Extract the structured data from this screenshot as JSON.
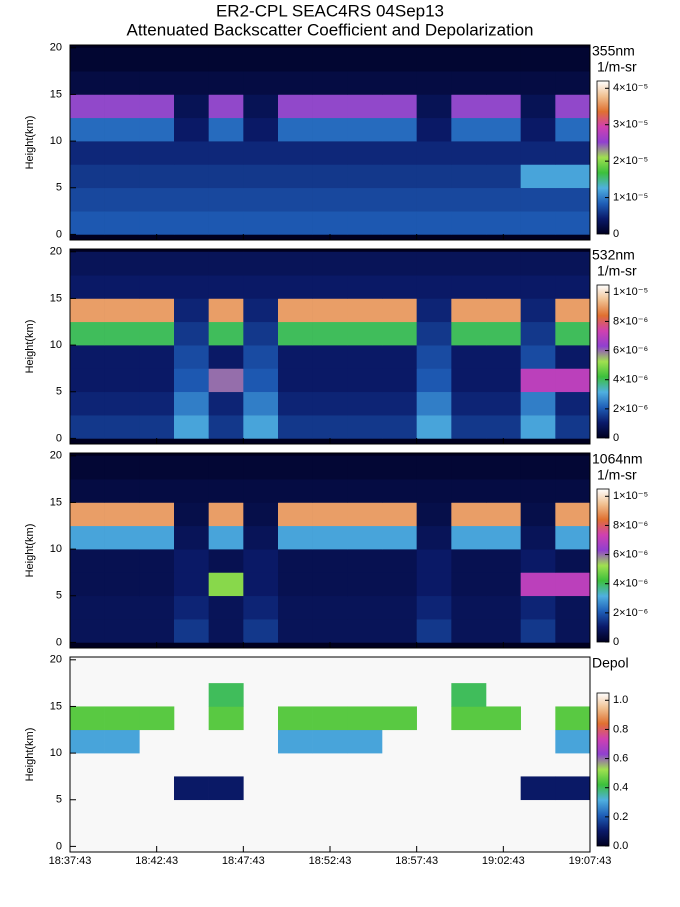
{
  "chart_data": [
    {
      "type": "heatmap",
      "title": "ER2-CPL SEAC4RS 04Sep13",
      "subtitle": "Attenuated Backscatter Coefficient and Depolarization",
      "label": "355nm",
      "units": "1/m-sr",
      "ylabel": "Height(km)",
      "xlim": [
        0,
        30
      ],
      "xticks": [
        0,
        5,
        10,
        15,
        20,
        25,
        30
      ],
      "ylim": [
        -0.6,
        20.3
      ],
      "yticks": [
        0,
        5,
        10,
        15,
        20
      ],
      "xbins": [
        0,
        2,
        4,
        6,
        8,
        10,
        12,
        14,
        16,
        18,
        20,
        22,
        24,
        26,
        28,
        30
      ],
      "ybins": [
        0,
        2.5,
        5,
        7.5,
        10,
        12.5,
        15,
        17.5,
        20
      ],
      "clim": [
        0,
        4.2e-05
      ],
      "cticks": [
        0,
        {
          "value": 1e-05,
          "label": "1×10⁻⁵"
        },
        {
          "value": 2e-05,
          "label": "2×10⁻⁵"
        },
        {
          "value": 3e-05,
          "label": "3×10⁻⁵"
        },
        {
          "value": 4e-05,
          "label": "4×10⁻⁵"
        }
      ],
      "colormap": [
        "#000020",
        "#0a1a6a",
        "#1f5fb8",
        "#4fb0e0",
        "#3cc03c",
        "#a0e050",
        "#9040d0",
        "#d040b0",
        "#e07030",
        "#f0c090",
        "#ffffff"
      ],
      "z": [
        [
          8e-06,
          8e-06,
          8e-06,
          8e-06,
          8e-06,
          8e-06,
          8e-06,
          8e-06,
          8e-06,
          8e-06,
          8e-06,
          8e-06,
          8e-06,
          8e-06,
          8e-06
        ],
        [
          7e-06,
          7e-06,
          7e-06,
          7e-06,
          7e-06,
          7e-06,
          7e-06,
          7e-06,
          7e-06,
          7e-06,
          7e-06,
          7e-06,
          7e-06,
          7e-06,
          7e-06
        ],
        [
          6e-06,
          6e-06,
          6e-06,
          6e-06,
          6e-06,
          6e-06,
          6e-06,
          6e-06,
          6e-06,
          6e-06,
          6e-06,
          6e-06,
          6e-06,
          1.2e-05,
          1.2e-05
        ],
        [
          5e-06,
          5e-06,
          5e-06,
          5e-06,
          5e-06,
          5e-06,
          5e-06,
          5e-06,
          5e-06,
          5e-06,
          5e-06,
          5e-06,
          5e-06,
          5e-06,
          5e-06
        ],
        [
          9e-06,
          9e-06,
          9e-06,
          4e-06,
          9e-06,
          4e-06,
          9e-06,
          9e-06,
          9e-06,
          9e-06,
          4e-06,
          9e-06,
          9e-06,
          4e-06,
          9e-06
        ],
        [
          2.5e-05,
          2.5e-05,
          2.5e-05,
          3e-06,
          2.5e-05,
          3e-06,
          2.5e-05,
          2.5e-05,
          2.5e-05,
          2.5e-05,
          3e-06,
          2.5e-05,
          2.5e-05,
          3e-06,
          2.5e-05
        ],
        [
          2e-06,
          2e-06,
          2e-06,
          2e-06,
          2e-06,
          2e-06,
          2e-06,
          2e-06,
          2e-06,
          2e-06,
          2e-06,
          2e-06,
          2e-06,
          2e-06,
          2e-06
        ],
        [
          1e-06,
          1e-06,
          1e-06,
          1e-06,
          1e-06,
          1e-06,
          1e-06,
          1e-06,
          1e-06,
          1e-06,
          1e-06,
          1e-06,
          1e-06,
          1e-06,
          1e-06
        ]
      ]
    },
    {
      "type": "heatmap",
      "label": "532nm",
      "units": "1/m-sr",
      "ylabel": "Height(km)",
      "xlim": [
        0,
        30
      ],
      "xticks": [
        0,
        5,
        10,
        15,
        20,
        25,
        30
      ],
      "ylim": [
        -0.6,
        20.3
      ],
      "yticks": [
        0,
        5,
        10,
        15,
        20
      ],
      "xbins": [
        0,
        2,
        4,
        6,
        8,
        10,
        12,
        14,
        16,
        18,
        20,
        22,
        24,
        26,
        28,
        30
      ],
      "ybins": [
        0,
        2.5,
        5,
        7.5,
        10,
        12.5,
        15,
        17.5,
        20
      ],
      "clim": [
        0,
        1.05e-05
      ],
      "cticks": [
        0,
        {
          "value": 2e-06,
          "label": "2×10⁻⁶"
        },
        {
          "value": 4e-06,
          "label": "4×10⁻⁶"
        },
        {
          "value": 6e-06,
          "label": "6×10⁻⁶"
        },
        {
          "value": 8e-06,
          "label": "8×10⁻⁶"
        },
        {
          "value": 1e-05,
          "label": "1×10⁻⁵"
        }
      ],
      "colormap": [
        "#000020",
        "#0a1a6a",
        "#1f5fb8",
        "#4fb0e0",
        "#3cc03c",
        "#a0e050",
        "#9040d0",
        "#d040b0",
        "#e07030",
        "#f0c090",
        "#ffffff"
      ],
      "z": [
        [
          1.5e-06,
          1.5e-06,
          1.5e-06,
          3e-06,
          1.5e-06,
          3e-06,
          1.5e-06,
          1.5e-06,
          1.5e-06,
          1.5e-06,
          3e-06,
          1.5e-06,
          1.5e-06,
          3e-06,
          1.5e-06
        ],
        [
          1.2e-06,
          1.2e-06,
          1.2e-06,
          2.5e-06,
          1.2e-06,
          2.5e-06,
          1.2e-06,
          1.2e-06,
          1.2e-06,
          1.2e-06,
          2.5e-06,
          1.2e-06,
          1.2e-06,
          2.5e-06,
          1.2e-06
        ],
        [
          1e-06,
          1e-06,
          1e-06,
          2e-06,
          6e-06,
          2e-06,
          1e-06,
          1e-06,
          1e-06,
          1e-06,
          2e-06,
          1e-06,
          1e-06,
          7e-06,
          7e-06
        ],
        [
          1e-06,
          1e-06,
          1e-06,
          1.8e-06,
          1e-06,
          1.8e-06,
          1e-06,
          1e-06,
          1e-06,
          1e-06,
          1.8e-06,
          1e-06,
          1e-06,
          1.8e-06,
          1e-06
        ],
        [
          4e-06,
          4e-06,
          4e-06,
          1.5e-06,
          4e-06,
          1.5e-06,
          4e-06,
          4e-06,
          4e-06,
          4e-06,
          1.5e-06,
          4e-06,
          4e-06,
          1.5e-06,
          4e-06
        ],
        [
          9e-06,
          9e-06,
          9e-06,
          1.2e-06,
          9e-06,
          1.2e-06,
          9e-06,
          9e-06,
          9e-06,
          9e-06,
          1.2e-06,
          9e-06,
          9e-06,
          1.2e-06,
          9e-06
        ],
        [
          1e-06,
          1e-06,
          1e-06,
          1e-06,
          1e-06,
          1e-06,
          1e-06,
          1e-06,
          1e-06,
          1e-06,
          1e-06,
          1e-06,
          1e-06,
          1e-06,
          1e-06
        ],
        [
          8e-07,
          8e-07,
          8e-07,
          8e-07,
          8e-07,
          8e-07,
          8e-07,
          8e-07,
          8e-07,
          8e-07,
          8e-07,
          8e-07,
          8e-07,
          8e-07,
          8e-07
        ]
      ]
    },
    {
      "type": "heatmap",
      "label": "1064nm",
      "units": "1/m-sr",
      "ylabel": "Height(km)",
      "xlim": [
        0,
        30
      ],
      "xticks": [
        0,
        5,
        10,
        15,
        20,
        25,
        30
      ],
      "ylim": [
        -0.6,
        20.3
      ],
      "yticks": [
        0,
        5,
        10,
        15,
        20
      ],
      "xbins": [
        0,
        2,
        4,
        6,
        8,
        10,
        12,
        14,
        16,
        18,
        20,
        22,
        24,
        26,
        28,
        30
      ],
      "ybins": [
        0,
        2.5,
        5,
        7.5,
        10,
        12.5,
        15,
        17.5,
        20
      ],
      "clim": [
        0,
        1.05e-05
      ],
      "cticks": [
        0,
        {
          "value": 2e-06,
          "label": "2×10⁻⁶"
        },
        {
          "value": 4e-06,
          "label": "4×10⁻⁶"
        },
        {
          "value": 6e-06,
          "label": "6×10⁻⁶"
        },
        {
          "value": 8e-06,
          "label": "8×10⁻⁶"
        },
        {
          "value": 1e-05,
          "label": "1×10⁻⁵"
        }
      ],
      "colormap": [
        "#000020",
        "#0a1a6a",
        "#1f5fb8",
        "#4fb0e0",
        "#3cc03c",
        "#a0e050",
        "#9040d0",
        "#d040b0",
        "#e07030",
        "#f0c090",
        "#ffffff"
      ],
      "z": [
        [
          8e-07,
          8e-07,
          8e-07,
          1.5e-06,
          8e-07,
          1.5e-06,
          8e-07,
          8e-07,
          8e-07,
          8e-07,
          1.5e-06,
          8e-07,
          8e-07,
          1.5e-06,
          8e-07
        ],
        [
          8e-07,
          8e-07,
          8e-07,
          1.2e-06,
          8e-07,
          1.2e-06,
          8e-07,
          8e-07,
          8e-07,
          8e-07,
          1.2e-06,
          8e-07,
          8e-07,
          1.2e-06,
          8e-07
        ],
        [
          7e-07,
          7e-07,
          7e-07,
          1e-06,
          5e-06,
          1e-06,
          7e-07,
          7e-07,
          7e-07,
          7e-07,
          1e-06,
          7e-07,
          7e-07,
          7e-06,
          7e-06
        ],
        [
          7e-07,
          7e-07,
          7e-07,
          1e-06,
          7e-07,
          1e-06,
          7e-07,
          7e-07,
          7e-07,
          7e-07,
          1e-06,
          7e-07,
          7e-07,
          1e-06,
          7e-07
        ],
        [
          3e-06,
          3e-06,
          3e-06,
          8e-07,
          3e-06,
          8e-07,
          3e-06,
          3e-06,
          3e-06,
          3e-06,
          8e-07,
          3e-06,
          3e-06,
          8e-07,
          3e-06
        ],
        [
          9e-06,
          9e-06,
          9e-06,
          6e-07,
          9e-06,
          6e-07,
          9e-06,
          9e-06,
          9e-06,
          9e-06,
          6e-07,
          9e-06,
          9e-06,
          6e-07,
          9e-06
        ],
        [
          5e-07,
          5e-07,
          5e-07,
          5e-07,
          5e-07,
          5e-07,
          5e-07,
          5e-07,
          5e-07,
          5e-07,
          5e-07,
          5e-07,
          5e-07,
          5e-07,
          5e-07
        ],
        [
          3e-07,
          3e-07,
          3e-07,
          3e-07,
          3e-07,
          3e-07,
          3e-07,
          3e-07,
          3e-07,
          3e-07,
          3e-07,
          3e-07,
          3e-07,
          3e-07,
          3e-07
        ]
      ]
    },
    {
      "type": "heatmap",
      "label": "Depol",
      "ylabel": "Height(km)",
      "background": "#f8f8f8",
      "xlim": [
        0,
        30
      ],
      "xticks": [
        {
          "value": 0,
          "label": "18:37:43"
        },
        {
          "value": 5,
          "label": "18:42:43"
        },
        {
          "value": 10,
          "label": "18:47:43"
        },
        {
          "value": 15,
          "label": "18:52:43"
        },
        {
          "value": 20,
          "label": "18:57:43"
        },
        {
          "value": 25,
          "label": "19:02:43"
        },
        {
          "value": 30,
          "label": "19:07:43"
        }
      ],
      "ylim": [
        -0.6,
        20.3
      ],
      "yticks": [
        0,
        5,
        10,
        15,
        20
      ],
      "xbins": [
        0,
        2,
        4,
        6,
        8,
        10,
        12,
        14,
        16,
        18,
        20,
        22,
        24,
        26,
        28,
        30
      ],
      "ybins": [
        0,
        2.5,
        5,
        7.5,
        10,
        12.5,
        15,
        17.5,
        20
      ],
      "clim": [
        0,
        1.05
      ],
      "cticks": [
        {
          "value": 0,
          "label": "0.0"
        },
        {
          "value": 0.2,
          "label": "0.2"
        },
        {
          "value": 0.4,
          "label": "0.4"
        },
        {
          "value": 0.6,
          "label": "0.6"
        },
        {
          "value": 0.8,
          "label": "0.8"
        },
        {
          "value": 1,
          "label": "1.0"
        }
      ],
      "colormap": [
        "#000020",
        "#0a1a6a",
        "#1f5fb8",
        "#4fb0e0",
        "#3cc03c",
        "#a0e050",
        "#9040d0",
        "#d040b0",
        "#e07030",
        "#f0c090",
        "#ffffff"
      ],
      "z": [
        [
          null,
          null,
          null,
          null,
          null,
          null,
          null,
          null,
          null,
          null,
          null,
          null,
          null,
          null,
          null
        ],
        [
          null,
          null,
          null,
          null,
          null,
          null,
          null,
          null,
          null,
          null,
          null,
          null,
          null,
          null,
          null
        ],
        [
          null,
          null,
          null,
          0.1,
          0.1,
          null,
          null,
          null,
          null,
          null,
          null,
          null,
          null,
          0.1,
          0.1
        ],
        [
          null,
          null,
          null,
          null,
          null,
          null,
          null,
          null,
          null,
          null,
          null,
          null,
          null,
          null,
          null
        ],
        [
          0.3,
          0.3,
          null,
          null,
          null,
          null,
          0.3,
          0.3,
          0.3,
          null,
          null,
          null,
          null,
          null,
          0.3
        ],
        [
          0.45,
          0.45,
          0.45,
          null,
          0.45,
          null,
          0.45,
          0.45,
          0.45,
          0.45,
          null,
          0.45,
          0.45,
          null,
          0.45
        ],
        [
          null,
          null,
          null,
          null,
          0.4,
          null,
          null,
          null,
          null,
          null,
          null,
          0.4,
          null,
          null,
          null
        ],
        [
          null,
          null,
          null,
          null,
          null,
          null,
          null,
          null,
          null,
          null,
          null,
          null,
          null,
          null,
          null
        ]
      ]
    }
  ]
}
